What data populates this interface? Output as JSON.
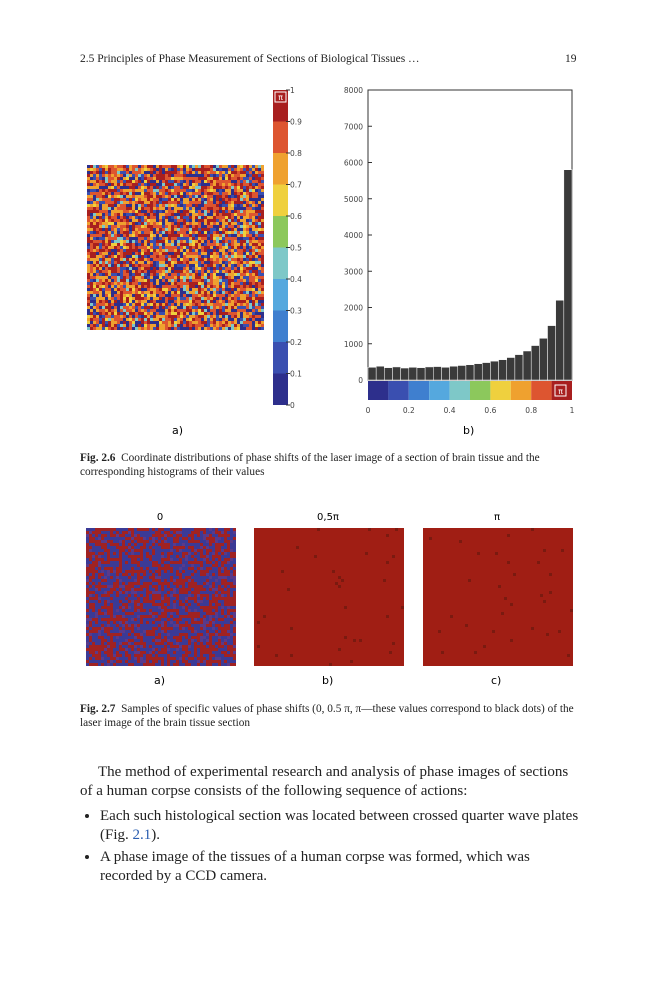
{
  "header": {
    "section": "2.5 Principles of Phase Measurement of Sections of Biological Tissues …",
    "page": "19"
  },
  "figure_2_6": {
    "panel_a_label": "a)",
    "panel_b_label": "b)",
    "symbol": "π",
    "colorbar_ticks": [
      0,
      0.1,
      0.2,
      0.3,
      0.4,
      0.5,
      0.6,
      0.7,
      0.8,
      0.9,
      1
    ],
    "caption_label": "Fig. 2.6",
    "caption_text": "Coordinate distributions of phase shifts of the laser image of a section of brain tissue and the corresponding histograms of their values"
  },
  "chart_data": {
    "type": "histogram",
    "bins": [
      0,
      0.04,
      0.08,
      0.12,
      0.16,
      0.2,
      0.24,
      0.28,
      0.32,
      0.36,
      0.4,
      0.44,
      0.48,
      0.52,
      0.56,
      0.6,
      0.64,
      0.68,
      0.72,
      0.76,
      0.8,
      0.84,
      0.88,
      0.92,
      0.96,
      1
    ],
    "values": [
      350,
      380,
      340,
      360,
      330,
      350,
      340,
      360,
      370,
      350,
      380,
      400,
      420,
      450,
      480,
      520,
      560,
      620,
      700,
      800,
      950,
      1150,
      1500,
      2200,
      5800
    ],
    "color": "#3a3a3a",
    "xlim": [
      0,
      1
    ],
    "ylim": [
      0,
      8000
    ],
    "xticks": [
      0,
      0.2,
      0.4,
      0.6,
      0.8,
      1
    ],
    "yticks": [
      0,
      1000,
      2000,
      3000,
      4000,
      5000,
      6000,
      7000,
      8000
    ]
  },
  "figure_2_7": {
    "panels": [
      {
        "title": "0",
        "label": "a)"
      },
      {
        "title": "0,5π",
        "label": "b)"
      },
      {
        "title": "π",
        "label": "c)"
      }
    ],
    "caption_label": "Fig. 2.7",
    "caption_text": "Samples of specific values of phase shifts (0, 0.5 π, π—these values correspond to black dots) of the laser image of the brain tissue section"
  },
  "body": {
    "paragraph": "The method of experimental research and analysis of phase images of sections of a human corpse consists of the following sequence of actions:",
    "bullets": [
      {
        "text": "Each such histological section was located between crossed quarter wave plates (Fig. ",
        "link": "2.1",
        "end": ")."
      },
      {
        "text": "A phase image of the tissues of a human corpse was formed, which was recorded by a CCD camera."
      }
    ]
  }
}
